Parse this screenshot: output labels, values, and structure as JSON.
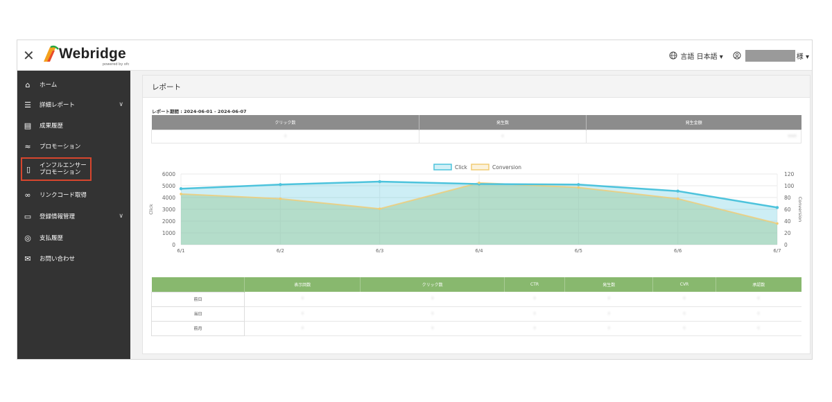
{
  "header": {
    "close_icon": "close-icon",
    "logo_text": "Webridge",
    "logo_sub": "powered by ofc",
    "language_label": "言語",
    "language_value": "日本語",
    "user_suffix": "様",
    "icons": {
      "globe": "globe-icon",
      "user": "user-icon"
    }
  },
  "sidebar": {
    "items": [
      {
        "label": "ホーム",
        "icon": "home-icon"
      },
      {
        "label": "詳細レポート",
        "icon": "report-icon"
      },
      {
        "label": "成果履歴",
        "icon": "history-icon"
      },
      {
        "label": "プロモーション",
        "icon": "handshake-icon"
      },
      {
        "label": "インフルエンサー",
        "label2": "プロモーション",
        "icon": "mobile-icon"
      },
      {
        "label": "リンクコード取得",
        "icon": "link-icon"
      },
      {
        "label": "登録情報管理",
        "icon": "profile-icon"
      },
      {
        "label": "支払履歴",
        "icon": "coins-icon"
      },
      {
        "label": "お問い合わせ",
        "icon": "mail-icon"
      }
    ],
    "colors": {
      "bg": "#333333",
      "highlight": "#d8462e"
    }
  },
  "main": {
    "title": "レポート",
    "period": "レポート期間 : 2024-06-01 - 2024-06-07",
    "summary": {
      "headers": [
        "クリック数",
        "発生数",
        "発生金額"
      ],
      "values": [
        "0",
        "0",
        "0000"
      ]
    },
    "detail": {
      "headers": [
        "",
        "表示回数",
        "クリック数",
        "CTR",
        "発生数",
        "CVR",
        "承認数"
      ],
      "rows": [
        {
          "label": "前日",
          "values": [
            "0",
            "0",
            "0",
            "0",
            "0",
            "0"
          ]
        },
        {
          "label": "当日",
          "values": [
            "0",
            "0",
            "0",
            "0",
            "0",
            "0"
          ]
        },
        {
          "label": "前月",
          "values": [
            "0",
            "0",
            "0",
            "0",
            "0",
            "0"
          ]
        }
      ]
    }
  },
  "chart_data": {
    "type": "area",
    "categories": [
      "6/1",
      "6/2",
      "6/3",
      "6/4",
      "6/5",
      "6/6",
      "6/7"
    ],
    "series": [
      {
        "name": "Click",
        "axis": "left",
        "values": [
          4750,
          5100,
          5350,
          5150,
          5100,
          4550,
          3150
        ],
        "color": "#4dc3dc"
      },
      {
        "name": "Conversion",
        "axis": "right",
        "values": [
          86,
          78,
          61,
          105,
          97,
          78,
          36
        ],
        "color": "#f1cc74"
      }
    ],
    "ylabel_left": "Click",
    "ylabel_right": "Conversion",
    "ylim_left": [
      0,
      6000
    ],
    "ylim_right": [
      0,
      120
    ],
    "yticks_left": [
      "0",
      "1000",
      "2000",
      "3000",
      "4000",
      "5000",
      "6000"
    ],
    "yticks_right": [
      "0",
      "20",
      "40",
      "60",
      "80",
      "100",
      "120"
    ],
    "legend_position": "top-center",
    "grid": true
  }
}
